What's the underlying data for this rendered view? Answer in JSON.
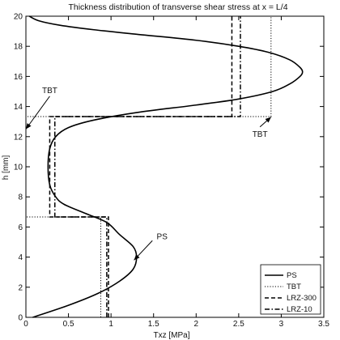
{
  "chart_data": {
    "type": "line",
    "title": "Thickness distribution of transverse shear stress at x = L/4",
    "xlabel": "Txz [MPa]",
    "ylabel": "h [mm]",
    "xlim": [
      0,
      3.5
    ],
    "ylim": [
      0,
      20
    ],
    "xticks": [
      0,
      0.5,
      1,
      1.5,
      2,
      2.5,
      3,
      3.5
    ],
    "yticks": [
      0,
      2,
      4,
      6,
      8,
      10,
      12,
      14,
      16,
      18,
      20
    ],
    "xtick_labels": [
      "0",
      "0.5",
      "1",
      "1.5",
      "2",
      "2.5",
      "3",
      "3.5"
    ],
    "ytick_labels": [
      "0",
      "2",
      "4",
      "6",
      "8",
      "10",
      "12",
      "14",
      "16",
      "18",
      "20"
    ],
    "grid": false,
    "legend_placement": "bottom-right",
    "series": [
      {
        "name": "PS",
        "style": "solid",
        "x": [
          0.08,
          0.5,
          0.85,
          1.1,
          1.26,
          1.3,
          1.26,
          1.1,
          0.95,
          0.7,
          0.45,
          0.35,
          0.28,
          0.26,
          0.28,
          0.35,
          0.5,
          0.8,
          1.3,
          2.0,
          2.5,
          2.9,
          3.1,
          3.22,
          3.25,
          3.22,
          3.1,
          2.85,
          2.5,
          2.0,
          1.3,
          0.8,
          0.4,
          0.15,
          0.04
        ],
        "y": [
          0,
          0.8,
          1.6,
          2.4,
          3.2,
          4.0,
          4.7,
          5.5,
          6.3,
          6.9,
          7.5,
          8.0,
          8.8,
          10.0,
          11.2,
          12.0,
          12.6,
          13.1,
          13.6,
          14.1,
          14.5,
          15.0,
          15.5,
          16.0,
          16.3,
          16.6,
          17.1,
          17.6,
          18.0,
          18.4,
          18.8,
          19.1,
          19.4,
          19.7,
          20
        ]
      },
      {
        "name": "TBT",
        "style": "dotted",
        "x": [
          0.88,
          0.88,
          0.0,
          0.0,
          2.88,
          2.88
        ],
        "y": [
          0,
          6.67,
          6.67,
          13.33,
          13.33,
          20
        ]
      },
      {
        "name": "LRZ-300",
        "style": "dashed",
        "x": [
          0.97,
          0.97,
          0.28,
          0.28,
          2.42,
          2.42
        ],
        "y": [
          0,
          6.67,
          6.67,
          13.33,
          13.33,
          20
        ]
      },
      {
        "name": "LRZ-10",
        "style": "dashdot",
        "x": [
          0.95,
          0.95,
          0.34,
          0.34,
          2.52,
          2.52
        ],
        "y": [
          0,
          6.67,
          6.67,
          13.33,
          13.33,
          20
        ]
      }
    ],
    "annotations": [
      {
        "text": "TBT",
        "text_x": 0.28,
        "text_y": 14.9,
        "arrow_to_x": 0.0,
        "arrow_to_y": 12.5
      },
      {
        "text": "TBT",
        "text_x": 2.75,
        "text_y": 12.0,
        "arrow_to_x": 2.88,
        "arrow_to_y": 13.3
      },
      {
        "text": "PS",
        "text_x": 1.6,
        "text_y": 5.2,
        "arrow_to_x": 1.27,
        "arrow_to_y": 3.8
      }
    ]
  }
}
